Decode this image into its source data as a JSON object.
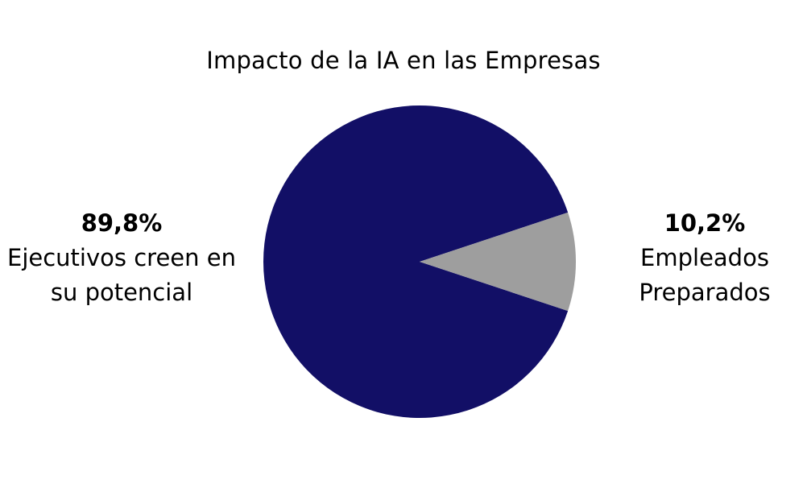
{
  "chart_data": {
    "type": "pie",
    "title": "Impacto de la IA en las Empresas",
    "slices": [
      {
        "value": 89.8,
        "value_label": "89,8%",
        "label_lines": [
          "Ejecutivos creen en",
          "su potencial"
        ],
        "color": "#120f66"
      },
      {
        "value": 10.2,
        "value_label": "10,2%",
        "label_lines": [
          "Empleados",
          "Preparados"
        ],
        "color": "#9e9e9e"
      }
    ],
    "legend": "none"
  }
}
